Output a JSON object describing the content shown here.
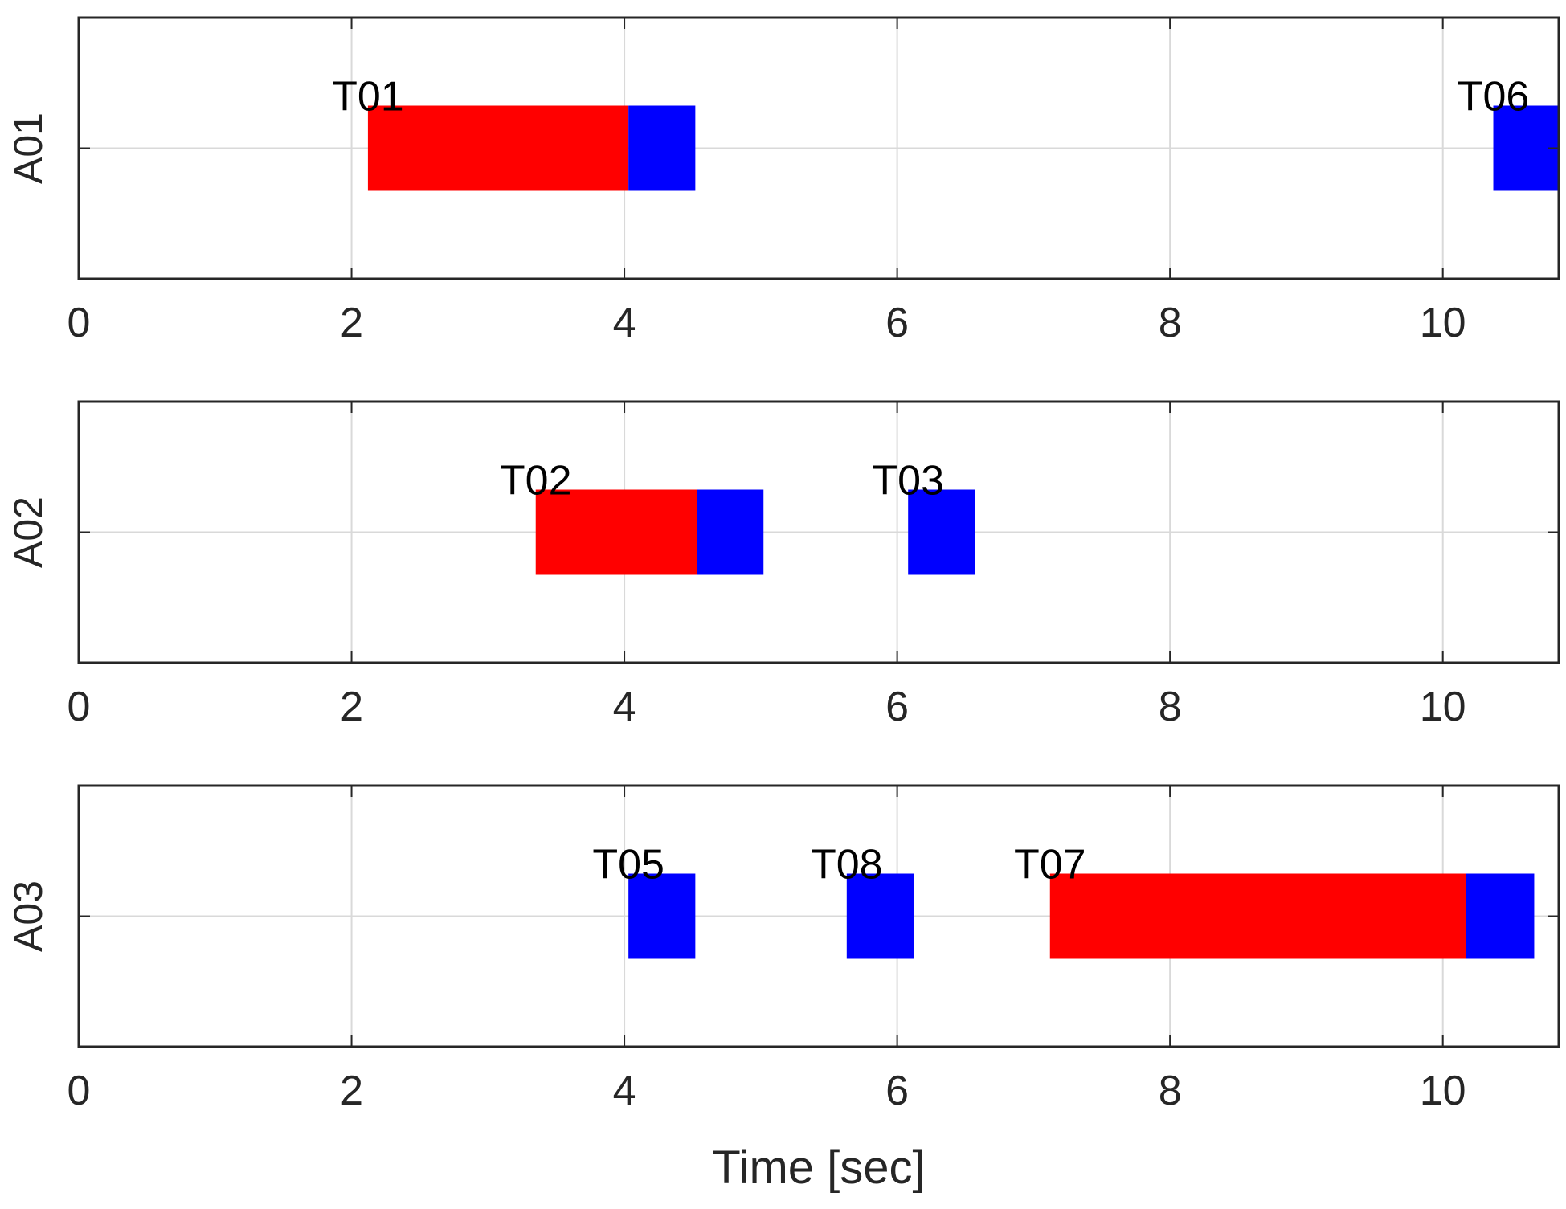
{
  "chart_data": {
    "type": "gantt",
    "xlabel": "Time [sec]",
    "xlim": [
      0,
      10.85
    ],
    "xticks": [
      0,
      2,
      4,
      6,
      8,
      10
    ],
    "grid": true,
    "colors": {
      "wait": "#ff0000",
      "exec": "#0000ff",
      "grid": "#d9d9d9",
      "axis": "#262626",
      "text": "#000000",
      "tick_label": "#262626"
    },
    "panels": [
      {
        "ylabel": "A01",
        "tasks": [
          {
            "label": "T01",
            "start": 2.12,
            "wait_end": 4.03,
            "end": 4.52
          },
          {
            "label": "T06",
            "start": 10.37,
            "wait_end": 10.37,
            "end": 10.85
          }
        ]
      },
      {
        "ylabel": "A02",
        "tasks": [
          {
            "label": "T02",
            "start": 3.35,
            "wait_end": 4.53,
            "end": 5.02
          },
          {
            "label": "T03",
            "start": 6.08,
            "wait_end": 6.08,
            "end": 6.57
          }
        ]
      },
      {
        "ylabel": "A03",
        "tasks": [
          {
            "label": "T05",
            "start": 4.03,
            "wait_end": 4.03,
            "end": 4.52
          },
          {
            "label": "T08",
            "start": 5.63,
            "wait_end": 5.63,
            "end": 6.12
          },
          {
            "label": "T07",
            "start": 7.12,
            "wait_end": 10.17,
            "end": 10.67
          }
        ]
      }
    ]
  }
}
